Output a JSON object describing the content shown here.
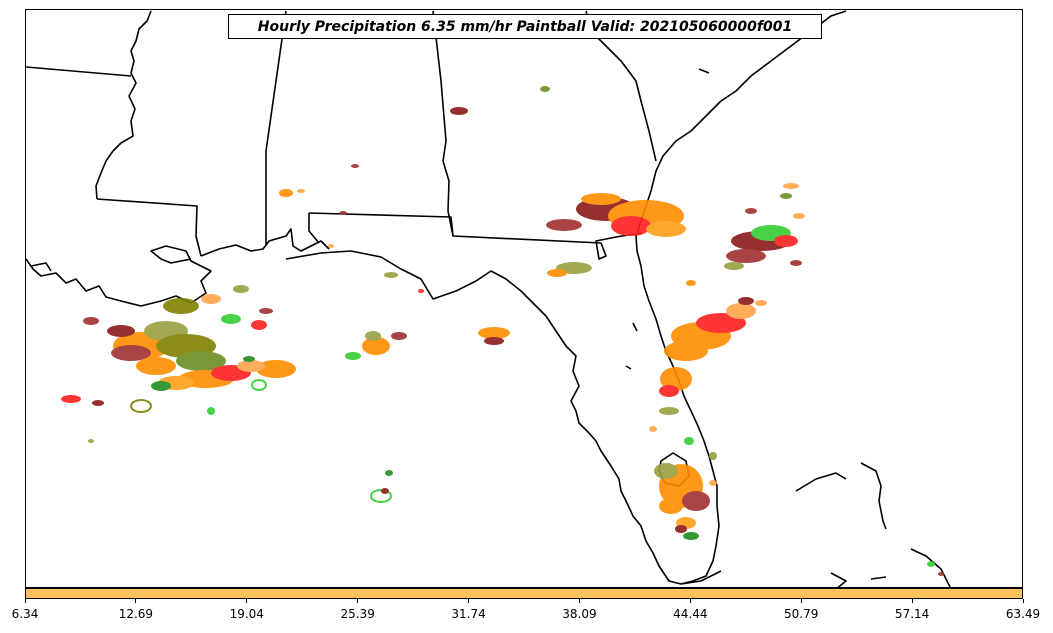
{
  "title": "Hourly Precipitation 6.35 mm/hr Paintball Valid: 202105060000f001",
  "colorbar": {
    "color": "#ffc060",
    "ticks": [
      "6.34",
      "12.69",
      "19.04",
      "25.39",
      "31.74",
      "38.09",
      "44.44",
      "50.79",
      "57.14",
      "63.49"
    ]
  },
  "map": {
    "region": "US Gulf Coast and Florida",
    "background": "#ffffff",
    "boundary_color": "#000000",
    "paintball_colors": [
      "#ff8c00",
      "#ff9f1a",
      "#ffa54a",
      "#ff2020",
      "#cc1010",
      "#8b1a1a",
      "#a03030",
      "#6b8e23",
      "#808000",
      "#9aa040",
      "#228b22",
      "#32cd32",
      "#3cd23c",
      "#00aa00"
    ]
  }
}
